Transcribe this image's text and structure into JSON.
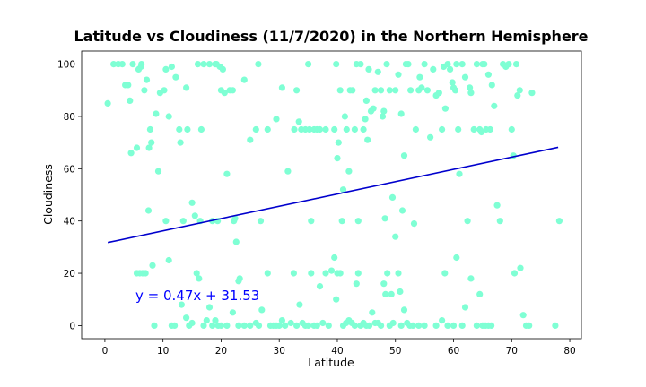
{
  "chart_data": {
    "type": "scatter",
    "title": "Latitude vs Cloudiness (11/7/2020) in the Northern Hemisphere",
    "xlabel": "Latitude",
    "ylabel": "Cloudiness",
    "xlim": [
      -4,
      82
    ],
    "ylim": [
      -5,
      105
    ],
    "xticks": [
      0,
      10,
      20,
      30,
      40,
      50,
      60,
      70,
      80
    ],
    "yticks": [
      0,
      20,
      40,
      60,
      80,
      100
    ],
    "grid": false,
    "point_color": "#7fffd4",
    "line_color": "#0000cd",
    "annotation_color": "#0000ff",
    "regression": {
      "slope": 0.47,
      "intercept": 31.53,
      "x_range": [
        0.5,
        78
      ],
      "label": "y = 0.47x + 31.53"
    },
    "points": [
      [
        0.5,
        85
      ],
      [
        1.5,
        100
      ],
      [
        2.3,
        100
      ],
      [
        3,
        100
      ],
      [
        3.5,
        92
      ],
      [
        4,
        92
      ],
      [
        4.3,
        86
      ],
      [
        4.5,
        66
      ],
      [
        4.8,
        100
      ],
      [
        5.5,
        68
      ],
      [
        5.8,
        98
      ],
      [
        6.2,
        99
      ],
      [
        6.3,
        100
      ],
      [
        6.8,
        90
      ],
      [
        7.2,
        94
      ],
      [
        7.6,
        68
      ],
      [
        7.8,
        75
      ],
      [
        8,
        70
      ],
      [
        8.8,
        81
      ],
      [
        9.2,
        59
      ],
      [
        9.5,
        89
      ],
      [
        10.2,
        90
      ],
      [
        10.5,
        98
      ],
      [
        11,
        80
      ],
      [
        11.5,
        99
      ],
      [
        12.2,
        95
      ],
      [
        12.8,
        75
      ],
      [
        13,
        70
      ],
      [
        13.5,
        40
      ],
      [
        14,
        91
      ],
      [
        14.2,
        75
      ],
      [
        15,
        47
      ],
      [
        15.5,
        42
      ],
      [
        16,
        100
      ],
      [
        16.4,
        40
      ],
      [
        16.6,
        75
      ],
      [
        17,
        100
      ],
      [
        18,
        100
      ],
      [
        18.5,
        40
      ],
      [
        19,
        100
      ],
      [
        19.2,
        100
      ],
      [
        19.4,
        40
      ],
      [
        19.8,
        99
      ],
      [
        20,
        90
      ],
      [
        20.3,
        98
      ],
      [
        20.6,
        89
      ],
      [
        21,
        58
      ],
      [
        21.5,
        90
      ],
      [
        22,
        90
      ],
      [
        22.2,
        40
      ],
      [
        22.4,
        41
      ],
      [
        22.6,
        32
      ],
      [
        23,
        17
      ],
      [
        23.2,
        18
      ],
      [
        24,
        94
      ],
      [
        25,
        71
      ],
      [
        26,
        75
      ],
      [
        26.4,
        100
      ],
      [
        26.8,
        40
      ],
      [
        28,
        75
      ],
      [
        29.5,
        79
      ],
      [
        30.5,
        91
      ],
      [
        31.5,
        59
      ],
      [
        32.6,
        75
      ],
      [
        33,
        90
      ],
      [
        33.4,
        78
      ],
      [
        33.8,
        75
      ],
      [
        34.5,
        75
      ],
      [
        35,
        100
      ],
      [
        35.2,
        75
      ],
      [
        35.5,
        40
      ],
      [
        36,
        75
      ],
      [
        36.5,
        75
      ],
      [
        37,
        75
      ],
      [
        38,
        75
      ],
      [
        39.5,
        75
      ],
      [
        39.8,
        100
      ],
      [
        40,
        64
      ],
      [
        40.2,
        70
      ],
      [
        40.5,
        90
      ],
      [
        40.8,
        40
      ],
      [
        41,
        52
      ],
      [
        41.3,
        80
      ],
      [
        41.6,
        75
      ],
      [
        42,
        59
      ],
      [
        42.2,
        90
      ],
      [
        42.6,
        90
      ],
      [
        43,
        75
      ],
      [
        43.3,
        100
      ],
      [
        43.6,
        40
      ],
      [
        44,
        100
      ],
      [
        44.5,
        75
      ],
      [
        44.8,
        79
      ],
      [
        45,
        86
      ],
      [
        45.2,
        71
      ],
      [
        45.4,
        98
      ],
      [
        45.8,
        82
      ],
      [
        46.2,
        83
      ],
      [
        46.5,
        90
      ],
      [
        47,
        97
      ],
      [
        47.5,
        90
      ],
      [
        47.8,
        80
      ],
      [
        48,
        82
      ],
      [
        48.2,
        41
      ],
      [
        48.5,
        100
      ],
      [
        49,
        90
      ],
      [
        49.5,
        49
      ],
      [
        50,
        90
      ],
      [
        50.5,
        96
      ],
      [
        51,
        81
      ],
      [
        51.2,
        44
      ],
      [
        51.5,
        65
      ],
      [
        51.8,
        100
      ],
      [
        52.2,
        100
      ],
      [
        52.6,
        90
      ],
      [
        53.2,
        39
      ],
      [
        53.5,
        75
      ],
      [
        54,
        90
      ],
      [
        54.2,
        95
      ],
      [
        54.5,
        91
      ],
      [
        55,
        100
      ],
      [
        55.5,
        90
      ],
      [
        56,
        72
      ],
      [
        56.5,
        98
      ],
      [
        57,
        88
      ],
      [
        57.5,
        89
      ],
      [
        58,
        75
      ],
      [
        58.3,
        99
      ],
      [
        58.6,
        83
      ],
      [
        59,
        100
      ],
      [
        59.4,
        98
      ],
      [
        59.8,
        93
      ],
      [
        60,
        91
      ],
      [
        60.3,
        90
      ],
      [
        60.5,
        100
      ],
      [
        60.8,
        75
      ],
      [
        61,
        58
      ],
      [
        61.5,
        100
      ],
      [
        62,
        95
      ],
      [
        62.4,
        40
      ],
      [
        62.8,
        91
      ],
      [
        63,
        89
      ],
      [
        63.5,
        75
      ],
      [
        64,
        100
      ],
      [
        64.5,
        75
      ],
      [
        64.8,
        74
      ],
      [
        65,
        100
      ],
      [
        65.3,
        100
      ],
      [
        65.6,
        75
      ],
      [
        66,
        96
      ],
      [
        66.3,
        75
      ],
      [
        66.6,
        92
      ],
      [
        67,
        84
      ],
      [
        67.5,
        46
      ],
      [
        68,
        40
      ],
      [
        68.5,
        100
      ],
      [
        69,
        99
      ],
      [
        69.5,
        100
      ],
      [
        70,
        75
      ],
      [
        70.3,
        65
      ],
      [
        70.8,
        100
      ],
      [
        71,
        88
      ],
      [
        71.4,
        90
      ],
      [
        73.5,
        89
      ],
      [
        78.2,
        40
      ],
      [
        5.5,
        20
      ],
      [
        6,
        20
      ],
      [
        6.5,
        20
      ],
      [
        7,
        20
      ],
      [
        7.5,
        44
      ],
      [
        8.2,
        23
      ],
      [
        8.5,
        0
      ],
      [
        10.5,
        40
      ],
      [
        11,
        25
      ],
      [
        11.5,
        0
      ],
      [
        12,
        0
      ],
      [
        13.2,
        8
      ],
      [
        14,
        3
      ],
      [
        14.5,
        0
      ],
      [
        15,
        1
      ],
      [
        15.8,
        20
      ],
      [
        16.2,
        18
      ],
      [
        17,
        0
      ],
      [
        17.5,
        2
      ],
      [
        18,
        7
      ],
      [
        18.5,
        0
      ],
      [
        19,
        2
      ],
      [
        19.5,
        0
      ],
      [
        20,
        0
      ],
      [
        21,
        0
      ],
      [
        22,
        5
      ],
      [
        23,
        0
      ],
      [
        24,
        0
      ],
      [
        25,
        0
      ],
      [
        26,
        1
      ],
      [
        26.5,
        0
      ],
      [
        27,
        6
      ],
      [
        28,
        20
      ],
      [
        28.5,
        0
      ],
      [
        29,
        0
      ],
      [
        29.5,
        0
      ],
      [
        30,
        0
      ],
      [
        30.5,
        2
      ],
      [
        31,
        0
      ],
      [
        32,
        1
      ],
      [
        32.5,
        20
      ],
      [
        33,
        0
      ],
      [
        33.5,
        8
      ],
      [
        34,
        1
      ],
      [
        34.5,
        0
      ],
      [
        35,
        0
      ],
      [
        35.5,
        20
      ],
      [
        36,
        0
      ],
      [
        36.5,
        0
      ],
      [
        37,
        15
      ],
      [
        37.5,
        1
      ],
      [
        38,
        20
      ],
      [
        38.5,
        0
      ],
      [
        39,
        21
      ],
      [
        39.5,
        26
      ],
      [
        39.8,
        10
      ],
      [
        40,
        20
      ],
      [
        40.5,
        20
      ],
      [
        41,
        0
      ],
      [
        41.5,
        1
      ],
      [
        42,
        2
      ],
      [
        42.5,
        1
      ],
      [
        43,
        0
      ],
      [
        43.3,
        16
      ],
      [
        43.6,
        20
      ],
      [
        44,
        0
      ],
      [
        44.5,
        1
      ],
      [
        45,
        0
      ],
      [
        45.5,
        0
      ],
      [
        46,
        5
      ],
      [
        46.5,
        1
      ],
      [
        47,
        1
      ],
      [
        47.5,
        0
      ],
      [
        48,
        16
      ],
      [
        48.3,
        12
      ],
      [
        48.6,
        20
      ],
      [
        49,
        0
      ],
      [
        49.3,
        12
      ],
      [
        49.6,
        1
      ],
      [
        50,
        34
      ],
      [
        50.5,
        20
      ],
      [
        50.8,
        13
      ],
      [
        51,
        0
      ],
      [
        51.5,
        6
      ],
      [
        52,
        1
      ],
      [
        52.5,
        0
      ],
      [
        53,
        0
      ],
      [
        54,
        0
      ],
      [
        55,
        0
      ],
      [
        57,
        0
      ],
      [
        58,
        2
      ],
      [
        58.5,
        20
      ],
      [
        59,
        0
      ],
      [
        60,
        0
      ],
      [
        60.5,
        26
      ],
      [
        61.5,
        0
      ],
      [
        62,
        7
      ],
      [
        63,
        18
      ],
      [
        64,
        0
      ],
      [
        64.5,
        12
      ],
      [
        65,
        0
      ],
      [
        65.5,
        0
      ],
      [
        66,
        0
      ],
      [
        66.5,
        0
      ],
      [
        70.5,
        20
      ],
      [
        71.5,
        22
      ],
      [
        72,
        4
      ],
      [
        72.5,
        0
      ],
      [
        73,
        0
      ],
      [
        77.5,
        0
      ]
    ]
  }
}
